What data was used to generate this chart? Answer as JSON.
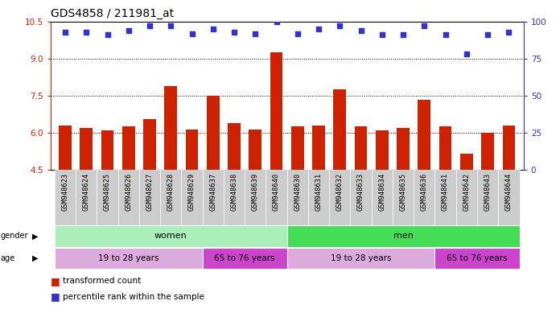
{
  "title": "GDS4858 / 211981_at",
  "samples": [
    "GSM948623",
    "GSM948624",
    "GSM948625",
    "GSM948626",
    "GSM948627",
    "GSM948628",
    "GSM948629",
    "GSM948637",
    "GSM948638",
    "GSM948639",
    "GSM948640",
    "GSM948630",
    "GSM948631",
    "GSM948632",
    "GSM948633",
    "GSM948634",
    "GSM948635",
    "GSM948636",
    "GSM948641",
    "GSM948642",
    "GSM948643",
    "GSM948644"
  ],
  "bar_values": [
    6.3,
    6.2,
    6.1,
    6.25,
    6.55,
    7.9,
    6.15,
    7.5,
    6.4,
    6.15,
    9.25,
    6.25,
    6.3,
    7.75,
    6.25,
    6.1,
    6.2,
    7.35,
    6.25,
    5.15,
    6.0,
    6.3
  ],
  "blue_values": [
    93,
    93,
    91,
    94,
    97,
    97,
    92,
    95,
    93,
    92,
    100,
    92,
    95,
    97,
    94,
    91,
    91,
    97,
    91,
    78,
    91,
    93
  ],
  "ylim_left": [
    4.5,
    10.5
  ],
  "ylim_right": [
    0,
    100
  ],
  "yticks_left": [
    4.5,
    6.0,
    7.5,
    9.0,
    10.5
  ],
  "yticks_right": [
    0,
    25,
    50,
    75,
    100
  ],
  "bar_color": "#cc2200",
  "dot_color": "#3333cc",
  "gender_groups": [
    {
      "label": "women",
      "start": 0,
      "end": 11,
      "color": "#aaeebb"
    },
    {
      "label": "men",
      "start": 11,
      "end": 22,
      "color": "#44dd55"
    }
  ],
  "age_groups": [
    {
      "label": "19 to 28 years",
      "start": 0,
      "end": 7,
      "color": "#ddaadd"
    },
    {
      "label": "65 to 76 years",
      "start": 7,
      "end": 11,
      "color": "#cc44cc"
    },
    {
      "label": "19 to 28 years",
      "start": 11,
      "end": 18,
      "color": "#ddaadd"
    },
    {
      "label": "65 to 76 years",
      "start": 18,
      "end": 22,
      "color": "#cc44cc"
    }
  ],
  "legend_items": [
    {
      "label": "transformed count",
      "color": "#cc2200"
    },
    {
      "label": "percentile rank within the sample",
      "color": "#3333cc"
    }
  ],
  "grid_yticks": [
    6.0,
    7.5,
    9.0
  ],
  "plot_bg": "#ffffff",
  "tick_bg": "#cccccc"
}
